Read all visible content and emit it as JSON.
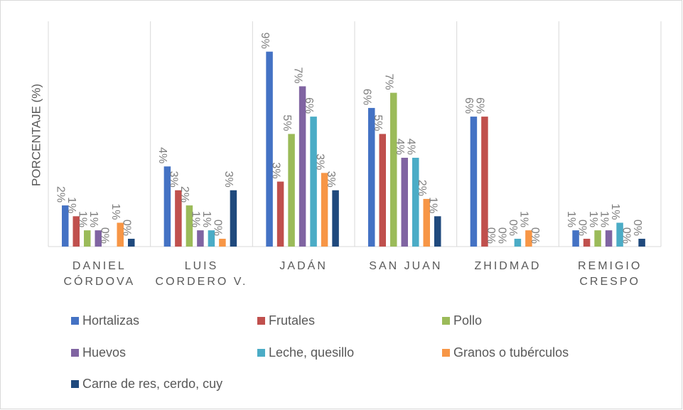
{
  "chart_data": {
    "type": "bar",
    "y_label": "PORCENTAJE (%)",
    "categories": [
      "DANIEL CÓRDOVA",
      "LUIS CORDERO V.",
      "JADÁN",
      "SAN JUAN",
      "ZHIDMAD",
      "REMIGIO CRESPO"
    ],
    "ylim": [
      0,
      10.4
    ],
    "series": [
      {
        "name": "Hortalizas",
        "color": "#4472c4",
        "values": [
          1.9,
          3.7,
          9.0,
          6.4,
          6.0,
          0.75
        ],
        "value_labels": [
          "2%",
          "4%",
          "9%",
          "6%",
          "6%",
          "1%"
        ]
      },
      {
        "name": "Frutales",
        "color": "#c0504d",
        "values": [
          1.4,
          2.6,
          3.0,
          5.2,
          6.0,
          0.36
        ],
        "value_labels": [
          "1%",
          "3%",
          "3%",
          "5%",
          "6%",
          "0%"
        ]
      },
      {
        "name": "Pollo",
        "color": "#9bbb59",
        "values": [
          0.75,
          1.9,
          5.2,
          7.1,
          0,
          0.75
        ],
        "value_labels": [
          "1%",
          "2%",
          "5%",
          "7%",
          "0%",
          "1%"
        ]
      },
      {
        "name": "Huevos",
        "color": "#8064a2",
        "values": [
          0.75,
          0.75,
          7.4,
          4.1,
          0,
          0.75
        ],
        "value_labels": [
          "1%",
          "1%",
          "7%",
          "4%",
          "0%",
          "1%"
        ]
      },
      {
        "name": "Leche, quesillo",
        "color": "#4bacc6",
        "values": [
          0,
          0.75,
          6.0,
          4.1,
          0.36,
          1.1
        ],
        "value_labels": [
          "0%",
          "1%",
          "6%",
          "4%",
          "0%",
          "1%"
        ]
      },
      {
        "name": "Granos o tubérculos",
        "color": "#f79646",
        "values": [
          1.1,
          0.36,
          3.4,
          2.2,
          0.75,
          0
        ],
        "value_labels": [
          "1%",
          "0%",
          "3%",
          "2%",
          "1%",
          "0%"
        ]
      },
      {
        "name": "Carne de res, cerdo, cuy",
        "color": "#1f497d",
        "values": [
          0.36,
          2.6,
          2.6,
          1.4,
          0,
          0.36
        ],
        "value_labels": [
          "0%",
          "3%",
          "3%",
          "1%",
          "0%",
          "0%"
        ]
      }
    ]
  }
}
